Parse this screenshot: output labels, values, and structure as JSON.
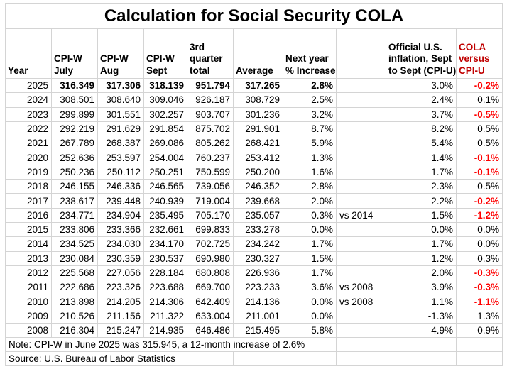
{
  "title": "Calculation for Social Security COLA",
  "colors": {
    "grid_line": "#d4d4d4",
    "negative_cola": "#ff0000",
    "cola_header": "#c00000",
    "text": "#000000"
  },
  "columns": [
    {
      "id": "year",
      "lines": [
        "Year"
      ]
    },
    {
      "id": "cpiw-july",
      "lines": [
        "CPI-W",
        "July"
      ]
    },
    {
      "id": "cpiw-aug",
      "lines": [
        "CPI-W",
        "Aug"
      ]
    },
    {
      "id": "cpiw-sept",
      "lines": [
        "CPI-W",
        "Sept"
      ]
    },
    {
      "id": "q3-total",
      "lines": [
        "3rd",
        "quarter",
        "total"
      ]
    },
    {
      "id": "average",
      "lines": [
        "Average"
      ]
    },
    {
      "id": "next-year-increase",
      "lines": [
        "Next year",
        "% Increase"
      ]
    },
    {
      "id": "annotation",
      "lines": []
    },
    {
      "id": "cpiu-inflation",
      "lines": [
        "Official U.S.",
        "inflation, Sept",
        "to Sept (CPI-U)"
      ]
    },
    {
      "id": "cola-vs-cpiu",
      "lines": [
        "COLA",
        "versus",
        "CPI-U"
      ],
      "use_color": "cola_header"
    }
  ],
  "rows": [
    {
      "year": "2025",
      "july": "316.349",
      "aug": "317.306",
      "sept": "318.139",
      "total": "951.794",
      "average": "317.265",
      "increase": "2.8%",
      "annotation": "",
      "cpiu": "3.0%",
      "cola": "-0.2%",
      "bold": true
    },
    {
      "year": "2024",
      "july": "308.501",
      "aug": "308.640",
      "sept": "309.046",
      "total": "926.187",
      "average": "308.729",
      "increase": "2.5%",
      "annotation": "",
      "cpiu": "2.4%",
      "cola": "0.1%"
    },
    {
      "year": "2023",
      "july": "299.899",
      "aug": "301.551",
      "sept": "302.257",
      "total": "903.707",
      "average": "301.236",
      "increase": "3.2%",
      "annotation": "",
      "cpiu": "3.7%",
      "cola": "-0.5%"
    },
    {
      "year": "2022",
      "july": "292.219",
      "aug": "291.629",
      "sept": "291.854",
      "total": "875.702",
      "average": "291.901",
      "increase": "8.7%",
      "annotation": "",
      "cpiu": "8.2%",
      "cola": "0.5%"
    },
    {
      "year": "2021",
      "july": "267.789",
      "aug": "268.387",
      "sept": "269.086",
      "total": "805.262",
      "average": "268.421",
      "increase": "5.9%",
      "annotation": "",
      "cpiu": "5.4%",
      "cola": "0.5%"
    },
    {
      "year": "2020",
      "july": "252.636",
      "aug": "253.597",
      "sept": "254.004",
      "total": "760.237",
      "average": "253.412",
      "increase": "1.3%",
      "annotation": "",
      "cpiu": "1.4%",
      "cola": "-0.1%"
    },
    {
      "year": "2019",
      "july": "250.236",
      "aug": "250.112",
      "sept": "250.251",
      "total": "750.599",
      "average": "250.200",
      "increase": "1.6%",
      "annotation": "",
      "cpiu": "1.7%",
      "cola": "-0.1%"
    },
    {
      "year": "2018",
      "july": "246.155",
      "aug": "246.336",
      "sept": "246.565",
      "total": "739.056",
      "average": "246.352",
      "increase": "2.8%",
      "annotation": "",
      "cpiu": "2.3%",
      "cola": "0.5%"
    },
    {
      "year": "2017",
      "july": "238.617",
      "aug": "239.448",
      "sept": "240.939",
      "total": "719.004",
      "average": "239.668",
      "increase": "2.0%",
      "annotation": "",
      "cpiu": "2.2%",
      "cola": "-0.2%"
    },
    {
      "year": "2016",
      "july": "234.771",
      "aug": "234.904",
      "sept": "235.495",
      "total": "705.170",
      "average": "235.057",
      "increase": "0.3%",
      "annotation": "vs 2014",
      "cpiu": "1.5%",
      "cola": "-1.2%"
    },
    {
      "year": "2015",
      "july": "233.806",
      "aug": "233.366",
      "sept": "232.661",
      "total": "699.833",
      "average": "233.278",
      "increase": "0.0%",
      "annotation": "",
      "cpiu": "0.0%",
      "cola": "0.0%"
    },
    {
      "year": "2014",
      "july": "234.525",
      "aug": "234.030",
      "sept": "234.170",
      "total": "702.725",
      "average": "234.242",
      "increase": "1.7%",
      "annotation": "",
      "cpiu": "1.7%",
      "cola": "0.0%"
    },
    {
      "year": "2013",
      "july": "230.084",
      "aug": "230.359",
      "sept": "230.537",
      "total": "690.980",
      "average": "230.327",
      "increase": "1.5%",
      "annotation": "",
      "cpiu": "1.2%",
      "cola": "0.3%"
    },
    {
      "year": "2012",
      "july": "225.568",
      "aug": "227.056",
      "sept": "228.184",
      "total": "680.808",
      "average": "226.936",
      "increase": "1.7%",
      "annotation": "",
      "cpiu": "2.0%",
      "cola": "-0.3%"
    },
    {
      "year": "2011",
      "july": "222.686",
      "aug": "223.326",
      "sept": "223.688",
      "total": "669.700",
      "average": "223.233",
      "increase": "3.6%",
      "annotation": "vs 2008",
      "cpiu": "3.9%",
      "cola": "-0.3%"
    },
    {
      "year": "2010",
      "july": "213.898",
      "aug": "214.205",
      "sept": "214.306",
      "total": "642.409",
      "average": "214.136",
      "increase": "0.0%",
      "annotation": "vs 2008",
      "cpiu": "1.1%",
      "cola": "-1.1%"
    },
    {
      "year": "2009",
      "july": "210.526",
      "aug": "211.156",
      "sept": "211.322",
      "total": "633.004",
      "average": "211.001",
      "increase": "0.0%",
      "annotation": "",
      "cpiu": "-1.3%",
      "cola": "1.3%"
    },
    {
      "year": "2008",
      "july": "216.304",
      "aug": "215.247",
      "sept": "214.935",
      "total": "646.486",
      "average": "215.495",
      "increase": "5.8%",
      "annotation": "",
      "cpiu": "4.9%",
      "cola": "0.9%"
    }
  ],
  "note": "Note: CPI-W in June 2025 was 315.945, a 12-month increase of 2.6%",
  "source": "Source: U.S. Bureau of Labor Statistics"
}
